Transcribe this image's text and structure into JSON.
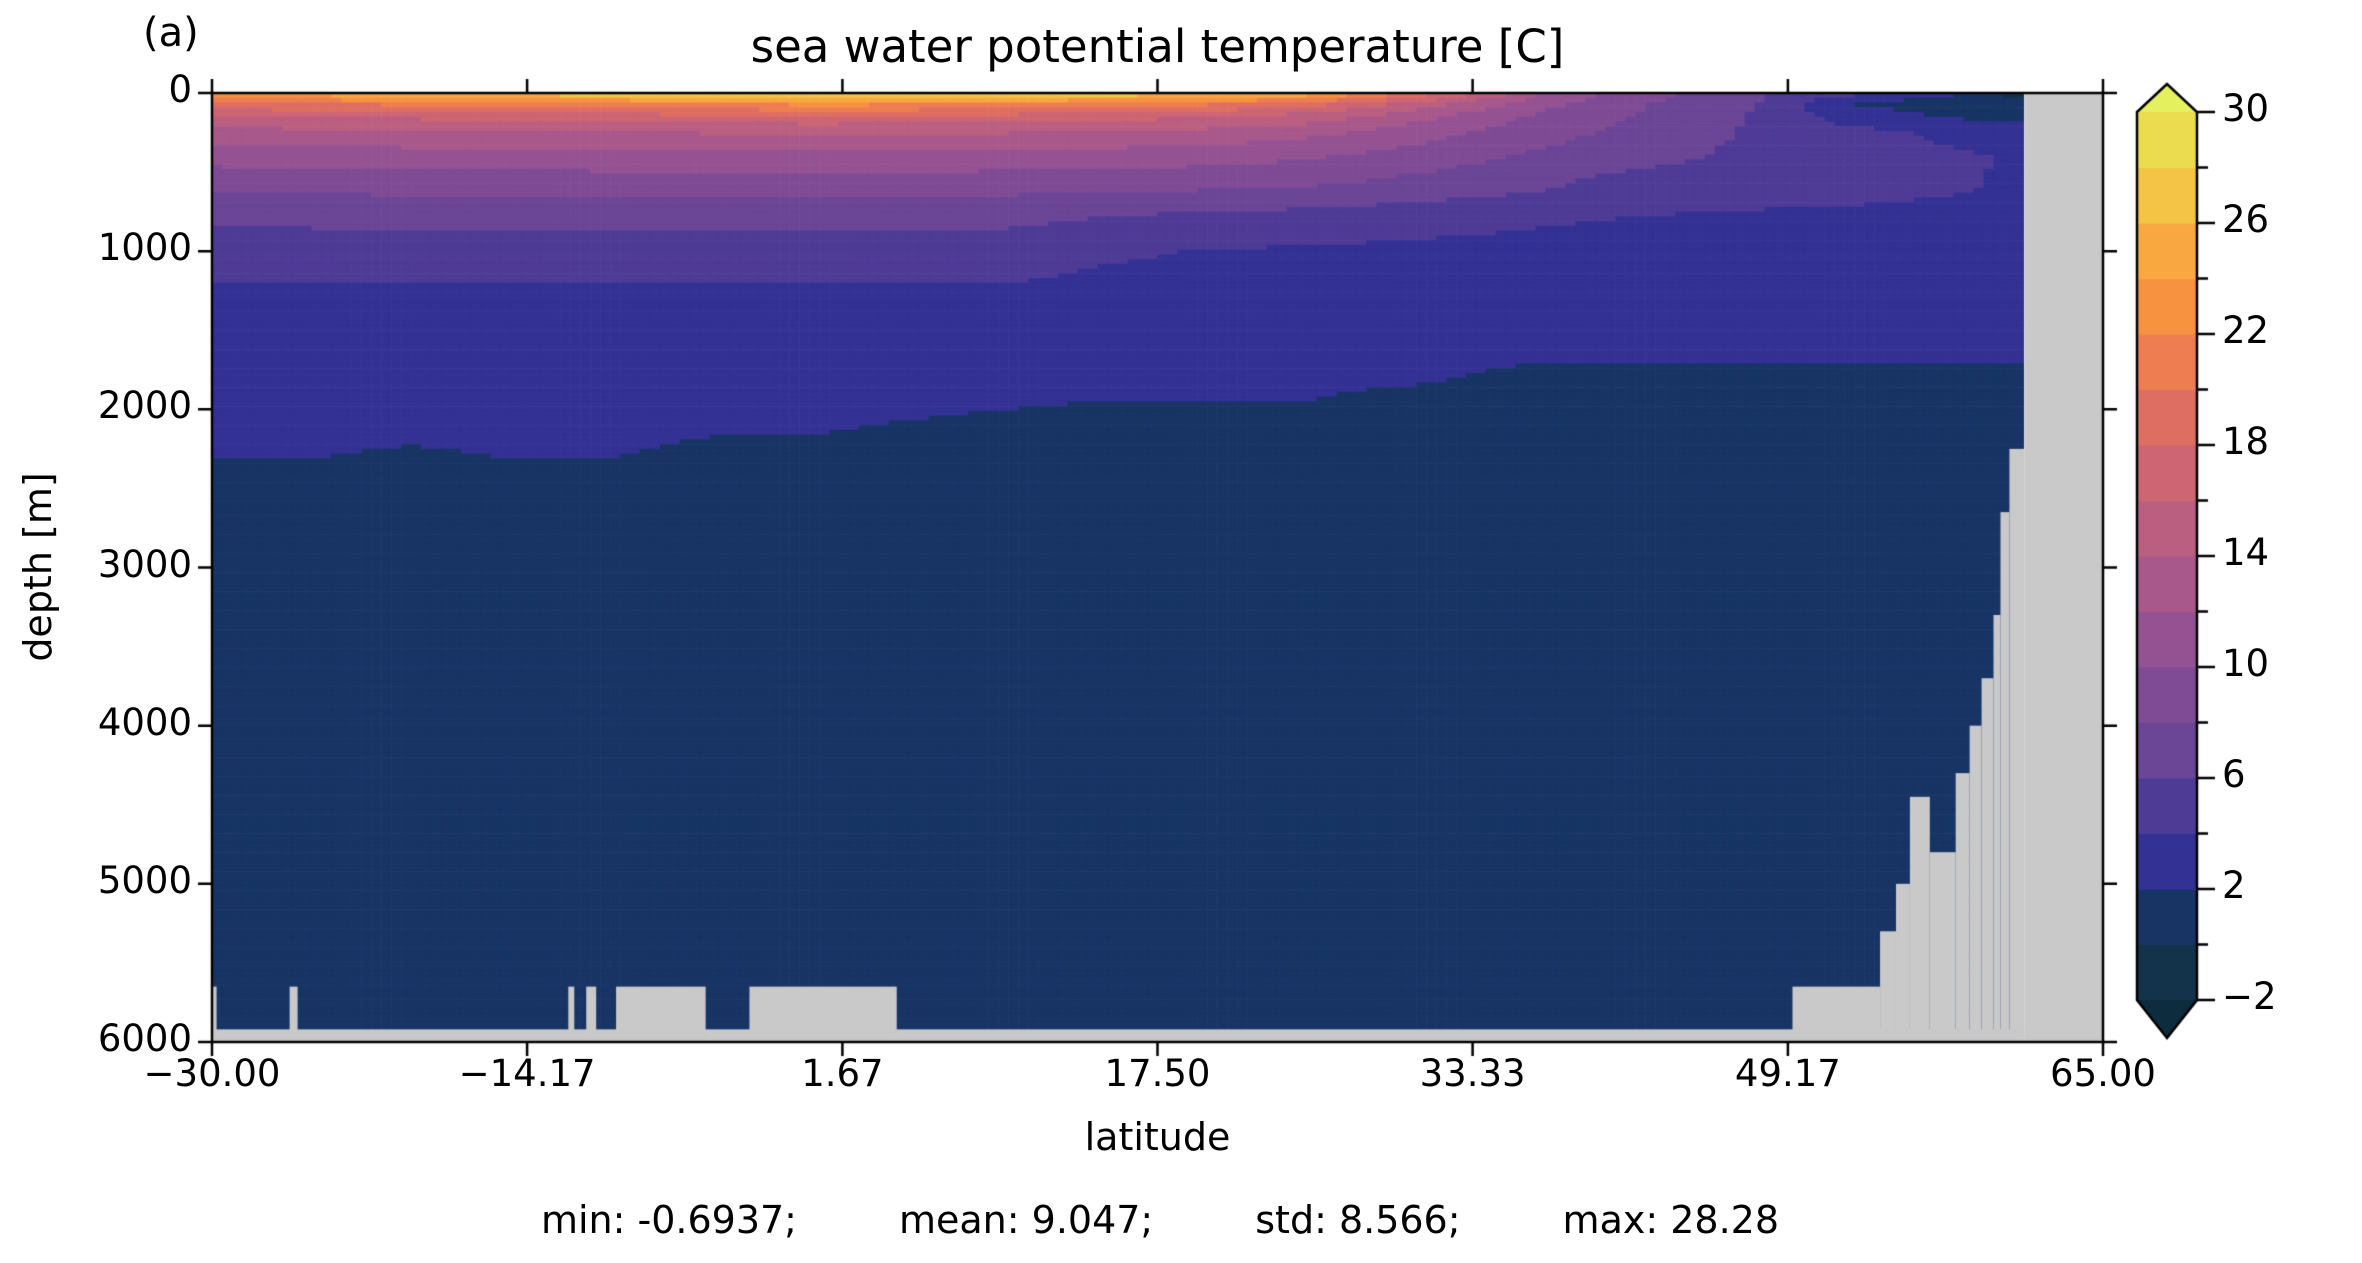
{
  "figure": {
    "panel_label": "(a)",
    "title": "sea water potential temperature [C]",
    "xlabel": "latitude",
    "ylabel": "depth [m]"
  },
  "stats": {
    "min": "min: -0.6937;",
    "mean": "mean: 9.047;",
    "std": "std: 8.566;",
    "max": "max: 28.28"
  },
  "chart_data": {
    "type": "heatmap",
    "subtype": "filled-contour-section",
    "title": "sea water potential temperature [C]",
    "xlabel": "latitude",
    "ylabel": "depth [m]",
    "panel": "(a)",
    "x_range": [
      -30,
      65
    ],
    "y_range": [
      0,
      6000
    ],
    "y_axis_inverted": true,
    "grid_on": false,
    "stats_text": [
      "min: -0.6937;",
      "mean: 9.047;",
      "std: 8.566;",
      "max: 28.28"
    ],
    "xticks": {
      "values": [
        -30,
        -14.17,
        1.67,
        17.5,
        33.33,
        49.17,
        65
      ],
      "labels": [
        "−30.00",
        "−14.17",
        "1.67",
        "17.50",
        "33.33",
        "49.17",
        "65.00"
      ]
    },
    "yticks": {
      "values": [
        0,
        1000,
        2000,
        3000,
        4000,
        5000,
        6000
      ],
      "labels": [
        "0",
        "1000",
        "2000",
        "3000",
        "4000",
        "5000",
        "6000"
      ]
    },
    "colorbar": {
      "vmin": -2,
      "vmax": 30,
      "level_step": 2,
      "major_tick_values": [
        30,
        26,
        22,
        18,
        14,
        10,
        6,
        2,
        -2
      ],
      "major_tick_labels": [
        "30",
        "26",
        "22",
        "18",
        "14",
        "10",
        "6",
        "2",
        "−2"
      ],
      "extend": "both"
    },
    "colors": {
      "under": "#0d2c3e",
      "bands": [
        "#123349",
        "#173465",
        "#333193",
        "#4e3b96",
        "#6b4596",
        "#7f4b95",
        "#945293",
        "#a8588b",
        "#bb5f80",
        "#cd6573",
        "#df6e62",
        "#ee7e51",
        "#f79241",
        "#f9a841",
        "#f4c447",
        "#ebdb4f"
      ],
      "over": "#e5f05e",
      "missing": "#c9c9c9",
      "axis": "#000000",
      "background": "#ffffff"
    },
    "field": {
      "lats": [
        -30,
        -25,
        -20,
        -15,
        -10,
        -5,
        0,
        5,
        10,
        15,
        20,
        25,
        28,
        31,
        34,
        37,
        40,
        44,
        48,
        52,
        54,
        56,
        58,
        60,
        61
      ],
      "depths": [
        0,
        30,
        80,
        150,
        250,
        400,
        600,
        800,
        1000,
        1300,
        1600,
        1750,
        2000,
        2400,
        3000,
        4000,
        5000,
        6000
      ],
      "temps": [
        [
          23.3,
          21.8,
          18.8,
          15.8,
          13.2,
          10.8,
          8.3,
          6.3,
          4.9,
          3.5,
          2.45,
          2.3,
          2.1,
          1.97,
          1.25,
          1.0,
          0.9,
          0.85
        ],
        [
          24.8,
          22.9,
          19.3,
          16.1,
          13.4,
          11.0,
          8.4,
          6.4,
          4.95,
          3.55,
          2.45,
          2.3,
          2.1,
          1.97,
          1.25,
          1.0,
          0.9,
          0.85
        ],
        [
          25.6,
          23.6,
          19.8,
          16.4,
          13.6,
          11.1,
          8.5,
          6.4,
          5.0,
          3.55,
          2.42,
          2.27,
          2.08,
          1.94,
          1.22,
          1.0,
          0.9,
          0.85
        ],
        [
          26.8,
          24.4,
          20.3,
          16.7,
          13.8,
          11.2,
          8.5,
          6.5,
          5.0,
          3.6,
          2.45,
          2.3,
          2.1,
          1.97,
          1.25,
          1.0,
          0.9,
          0.85
        ],
        [
          27.6,
          25.2,
          20.8,
          17.0,
          14.0,
          11.3,
          8.6,
          6.5,
          5.0,
          3.6,
          2.45,
          2.3,
          2.1,
          1.97,
          1.25,
          1.0,
          0.9,
          0.85
        ],
        [
          28.2,
          25.8,
          21.3,
          17.3,
          14.1,
          11.3,
          8.6,
          6.5,
          5.0,
          3.6,
          2.4,
          2.25,
          2.06,
          1.92,
          1.2,
          1.0,
          0.9,
          0.85
        ],
        [
          28.28,
          26.2,
          21.6,
          17.5,
          14.2,
          11.4,
          8.6,
          6.5,
          5.0,
          3.6,
          2.4,
          2.25,
          2.06,
          1.92,
          1.2,
          1.0,
          0.9,
          0.85
        ],
        [
          28.25,
          26.1,
          21.5,
          17.4,
          14.2,
          11.4,
          8.6,
          6.5,
          5.0,
          3.6,
          2.35,
          2.2,
          2.03,
          1.85,
          1.2,
          1.0,
          0.9,
          0.85
        ],
        [
          28.0,
          25.8,
          21.2,
          17.2,
          14.1,
          11.3,
          8.5,
          6.4,
          4.95,
          3.55,
          2.32,
          2.17,
          2.0,
          1.8,
          1.18,
          0.98,
          0.9,
          0.85
        ],
        [
          27.4,
          25.1,
          20.5,
          16.8,
          13.8,
          11.1,
          8.4,
          5.8,
          4.3,
          3.2,
          2.3,
          2.15,
          1.96,
          1.75,
          1.15,
          0.95,
          0.88,
          0.84
        ],
        [
          26.6,
          24.1,
          19.6,
          16.1,
          13.3,
          10.8,
          8.2,
          5.2,
          3.9,
          3.0,
          2.3,
          2.15,
          1.96,
          1.75,
          1.15,
          0.95,
          0.88,
          0.84
        ],
        [
          25.5,
          22.7,
          18.3,
          15.1,
          12.6,
          10.3,
          7.9,
          5.0,
          3.8,
          2.95,
          2.3,
          2.15,
          1.96,
          1.75,
          1.15,
          0.95,
          0.88,
          0.84
        ],
        [
          22.5,
          20.0,
          16.5,
          13.9,
          11.7,
          9.7,
          7.5,
          4.8,
          3.7,
          2.9,
          2.25,
          2.1,
          1.9,
          1.7,
          1.15,
          0.95,
          0.88,
          0.83
        ],
        [
          19.0,
          17.0,
          14.5,
          12.5,
          10.7,
          9.0,
          7.0,
          4.6,
          3.6,
          2.85,
          2.22,
          2.07,
          1.87,
          1.68,
          1.12,
          0.95,
          0.88,
          0.83
        ],
        [
          15.5,
          14.2,
          12.5,
          11.0,
          9.7,
          8.3,
          6.6,
          4.4,
          3.5,
          2.8,
          2.15,
          2.0,
          1.8,
          1.6,
          1.1,
          0.93,
          0.85,
          0.8
        ],
        [
          12.0,
          11.3,
          10.3,
          9.4,
          8.6,
          7.6,
          6.2,
          4.2,
          3.4,
          2.75,
          2.1,
          1.95,
          1.75,
          1.55,
          1.05,
          0.9,
          0.85,
          0.8
        ],
        [
          10.0,
          9.5,
          8.9,
          8.4,
          7.9,
          7.1,
          5.2,
          4.0,
          3.3,
          2.7,
          2.1,
          1.95,
          1.75,
          1.55,
          1.05,
          0.9,
          0.85,
          0.8
        ],
        [
          7.8,
          7.5,
          7.2,
          7.0,
          6.7,
          6.2,
          4.8,
          3.8,
          3.2,
          2.6,
          2.1,
          1.95,
          1.75,
          1.55,
          1.05,
          0.9,
          0.85,
          0.8
        ],
        [
          6.2,
          6.0,
          5.8,
          5.7,
          5.6,
          5.4,
          4.6,
          3.7,
          3.1,
          2.55,
          2.1,
          1.95,
          1.75,
          1.55,
          1.05,
          0.9,
          0.85,
          0.8
        ],
        [
          5.2,
          3.0,
          1.95,
          3.2,
          4.6,
          4.9,
          4.4,
          3.7,
          3.1,
          2.5,
          2.1,
          1.95,
          1.75,
          1.55,
          1.05,
          0.9,
          0.85,
          0.8
        ],
        [
          4.9,
          2.6,
          1.7,
          2.8,
          4.3,
          4.7,
          4.3,
          3.65,
          3.05,
          2.5,
          2.1,
          1.95,
          1.75,
          1.55,
          1.05,
          0.9,
          0.85,
          0.8
        ],
        [
          4.3,
          1.8,
          1.35,
          2.2,
          3.9,
          4.5,
          4.2,
          3.6,
          3.0,
          2.45,
          2.1,
          1.95,
          1.75,
          1.55,
          1.05,
          0.9,
          0.85,
          0.8
        ],
        [
          1.9,
          1.1,
          1.0,
          1.7,
          3.3,
          4.2,
          4.1,
          3.55,
          3.0,
          2.4,
          2.1,
          1.95,
          1.75,
          1.55,
          1.05,
          0.9,
          0.85,
          0.8
        ],
        [
          -0.2,
          0.3,
          0.8,
          1.5,
          2.9,
          3.9,
          3.9,
          3.5,
          3.0,
          2.4,
          2.1,
          1.95,
          1.75,
          1.55,
          1.05,
          0.9,
          0.85,
          0.8
        ],
        [
          -0.6,
          0.0,
          0.7,
          1.4,
          2.8,
          3.8,
          3.85,
          3.5,
          3.0,
          2.4,
          2.1,
          1.95,
          1.75,
          1.55,
          1.05,
          0.9,
          0.85,
          0.8
        ]
      ]
    },
    "missing_regions": [
      {
        "lat": [
          61.05,
          65
        ],
        "depth": [
          0,
          6000
        ]
      },
      {
        "lat": [
          60.3,
          61.05
        ],
        "depth": [
          2250,
          6000
        ]
      },
      {
        "lat": [
          59.85,
          60.3
        ],
        "depth": [
          2650,
          6000
        ]
      },
      {
        "lat": [
          59.5,
          59.85
        ],
        "depth": [
          3300,
          6000
        ]
      },
      {
        "lat": [
          58.9,
          59.5
        ],
        "depth": [
          3700,
          6000
        ]
      },
      {
        "lat": [
          58.3,
          58.9
        ],
        "depth": [
          4000,
          6000
        ]
      },
      {
        "lat": [
          57.6,
          58.3
        ],
        "depth": [
          4300,
          6000
        ]
      },
      {
        "lat": [
          56.3,
          57.6
        ],
        "depth": [
          4800,
          6000
        ]
      },
      {
        "lat": [
          55.3,
          56.3
        ],
        "depth": [
          4450,
          6000
        ]
      },
      {
        "lat": [
          54.6,
          55.3
        ],
        "depth": [
          5000,
          6000
        ]
      },
      {
        "lat": [
          53.8,
          54.6
        ],
        "depth": [
          5300,
          6000
        ]
      },
      {
        "lat": [
          49.4,
          53.8
        ],
        "depth": [
          5650,
          6000
        ]
      },
      {
        "lat": [
          -30,
          61.05
        ],
        "depth": [
          5920,
          6000
        ]
      },
      {
        "lat": [
          -30,
          -29.77
        ],
        "depth": [
          5650,
          6000
        ]
      },
      {
        "lat": [
          -26.1,
          -25.7
        ],
        "depth": [
          5650,
          6000
        ]
      },
      {
        "lat": [
          -12.1,
          -11.8
        ],
        "depth": [
          5650,
          6000
        ]
      },
      {
        "lat": [
          -11.2,
          -10.7
        ],
        "depth": [
          5650,
          6000
        ]
      },
      {
        "lat": [
          -9.7,
          -5.2
        ],
        "depth": [
          5650,
          6000
        ]
      },
      {
        "lat": [
          -3.0,
          4.4
        ],
        "depth": [
          5650,
          6000
        ]
      }
    ]
  }
}
